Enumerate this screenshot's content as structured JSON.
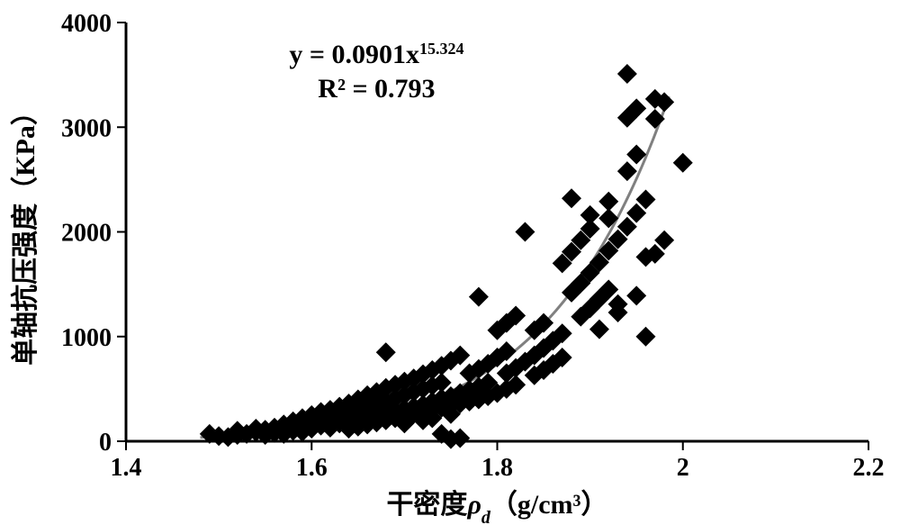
{
  "chart": {
    "type": "scatter",
    "background_color": "#ffffff",
    "fit_line_color": "#808080",
    "marker_color": "#000000",
    "marker_style": "diamond",
    "marker_size": 22,
    "axis_line_color": "#000000",
    "axis_line_width": 3,
    "tick_length": 10,
    "x": {
      "label": "干密度ρd（g/cm³）",
      "italic_symbol": "ρ",
      "subscript": "d",
      "min": 1.4,
      "max": 2.2,
      "tick_step": 0.2,
      "label_fontsize": 30
    },
    "y": {
      "label": "单轴抗压强度（KPa）",
      "min": 0,
      "max": 4000,
      "tick_step": 1000,
      "label_fontsize": 30
    },
    "equation": {
      "line1_prefix": "y = 0.0901x",
      "line1_sup": "15.324",
      "line2": "R² = 0.793",
      "fontsize": 30,
      "sup_fontsize": 18
    },
    "fit": {
      "a": 0.0901,
      "b": 15.324
    },
    "points": [
      [
        1.49,
        70
      ],
      [
        1.5,
        50
      ],
      [
        1.51,
        40
      ],
      [
        1.52,
        60
      ],
      [
        1.52,
        100
      ],
      [
        1.53,
        70
      ],
      [
        1.54,
        90
      ],
      [
        1.54,
        120
      ],
      [
        1.55,
        60
      ],
      [
        1.55,
        110
      ],
      [
        1.56,
        130
      ],
      [
        1.56,
        80
      ],
      [
        1.57,
        160
      ],
      [
        1.57,
        70
      ],
      [
        1.58,
        140
      ],
      [
        1.58,
        190
      ],
      [
        1.58,
        100
      ],
      [
        1.59,
        170
      ],
      [
        1.59,
        220
      ],
      [
        1.59,
        90
      ],
      [
        1.6,
        250
      ],
      [
        1.6,
        180
      ],
      [
        1.6,
        120
      ],
      [
        1.61,
        210
      ],
      [
        1.61,
        280
      ],
      [
        1.61,
        150
      ],
      [
        1.62,
        300
      ],
      [
        1.62,
        200
      ],
      [
        1.62,
        130
      ],
      [
        1.63,
        330
      ],
      [
        1.63,
        230
      ],
      [
        1.63,
        170
      ],
      [
        1.64,
        360
      ],
      [
        1.64,
        260
      ],
      [
        1.64,
        190
      ],
      [
        1.64,
        120
      ],
      [
        1.65,
        400
      ],
      [
        1.65,
        290
      ],
      [
        1.65,
        210
      ],
      [
        1.65,
        140
      ],
      [
        1.66,
        440
      ],
      [
        1.66,
        320
      ],
      [
        1.66,
        230
      ],
      [
        1.66,
        160
      ],
      [
        1.67,
        470
      ],
      [
        1.67,
        350
      ],
      [
        1.67,
        250
      ],
      [
        1.67,
        180
      ],
      [
        1.68,
        510
      ],
      [
        1.68,
        380
      ],
      [
        1.68,
        270
      ],
      [
        1.68,
        200
      ],
      [
        1.68,
        850
      ],
      [
        1.69,
        540
      ],
      [
        1.69,
        410
      ],
      [
        1.69,
        290
      ],
      [
        1.69,
        220
      ],
      [
        1.7,
        570
      ],
      [
        1.7,
        440
      ],
      [
        1.7,
        310
      ],
      [
        1.7,
        240
      ],
      [
        1.7,
        170
      ],
      [
        1.71,
        600
      ],
      [
        1.71,
        470
      ],
      [
        1.71,
        330
      ],
      [
        1.71,
        260
      ],
      [
        1.72,
        640
      ],
      [
        1.72,
        500
      ],
      [
        1.72,
        350
      ],
      [
        1.72,
        280
      ],
      [
        1.72,
        200
      ],
      [
        1.73,
        680
      ],
      [
        1.73,
        530
      ],
      [
        1.73,
        380
      ],
      [
        1.73,
        300
      ],
      [
        1.73,
        220
      ],
      [
        1.74,
        720
      ],
      [
        1.74,
        560
      ],
      [
        1.74,
        410
      ],
      [
        1.74,
        320
      ],
      [
        1.74,
        70
      ],
      [
        1.75,
        770
      ],
      [
        1.75,
        430
      ],
      [
        1.75,
        340
      ],
      [
        1.75,
        260
      ],
      [
        1.75,
        20
      ],
      [
        1.76,
        820
      ],
      [
        1.76,
        460
      ],
      [
        1.76,
        360
      ],
      [
        1.76,
        30
      ],
      [
        1.77,
        650
      ],
      [
        1.77,
        490
      ],
      [
        1.77,
        380
      ],
      [
        1.78,
        690
      ],
      [
        1.78,
        520
      ],
      [
        1.78,
        400
      ],
      [
        1.78,
        1380
      ],
      [
        1.79,
        740
      ],
      [
        1.79,
        560
      ],
      [
        1.79,
        430
      ],
      [
        1.8,
        1060
      ],
      [
        1.8,
        800
      ],
      [
        1.8,
        460
      ],
      [
        1.81,
        1130
      ],
      [
        1.81,
        860
      ],
      [
        1.81,
        650
      ],
      [
        1.81,
        500
      ],
      [
        1.82,
        1200
      ],
      [
        1.82,
        700
      ],
      [
        1.82,
        540
      ],
      [
        1.83,
        760
      ],
      [
        1.83,
        2000
      ],
      [
        1.84,
        1060
      ],
      [
        1.84,
        820
      ],
      [
        1.84,
        630
      ],
      [
        1.85,
        1130
      ],
      [
        1.85,
        890
      ],
      [
        1.85,
        680
      ],
      [
        1.86,
        960
      ],
      [
        1.86,
        740
      ],
      [
        1.87,
        1700
      ],
      [
        1.87,
        1030
      ],
      [
        1.87,
        800
      ],
      [
        1.88,
        1810
      ],
      [
        1.88,
        1420
      ],
      [
        1.88,
        2320
      ],
      [
        1.89,
        1920
      ],
      [
        1.89,
        1510
      ],
      [
        1.89,
        1190
      ],
      [
        1.9,
        2030
      ],
      [
        1.9,
        1610
      ],
      [
        1.9,
        1270
      ],
      [
        1.9,
        2160
      ],
      [
        1.91,
        1710
      ],
      [
        1.91,
        1360
      ],
      [
        1.91,
        1070
      ],
      [
        1.92,
        2290
      ],
      [
        1.92,
        1820
      ],
      [
        1.92,
        1450
      ],
      [
        1.92,
        2130
      ],
      [
        1.93,
        1930
      ],
      [
        1.93,
        1310
      ],
      [
        1.93,
        1230
      ],
      [
        1.94,
        2580
      ],
      [
        1.94,
        2050
      ],
      [
        1.94,
        3090
      ],
      [
        1.94,
        3510
      ],
      [
        1.95,
        2740
      ],
      [
        1.95,
        2180
      ],
      [
        1.95,
        3180
      ],
      [
        1.95,
        1390
      ],
      [
        1.96,
        1000
      ],
      [
        1.96,
        2310
      ],
      [
        1.96,
        1760
      ],
      [
        1.97,
        3080
      ],
      [
        1.97,
        1790
      ],
      [
        1.97,
        3270
      ],
      [
        1.98,
        1920
      ],
      [
        1.98,
        3240
      ],
      [
        2.0,
        2660
      ]
    ]
  }
}
